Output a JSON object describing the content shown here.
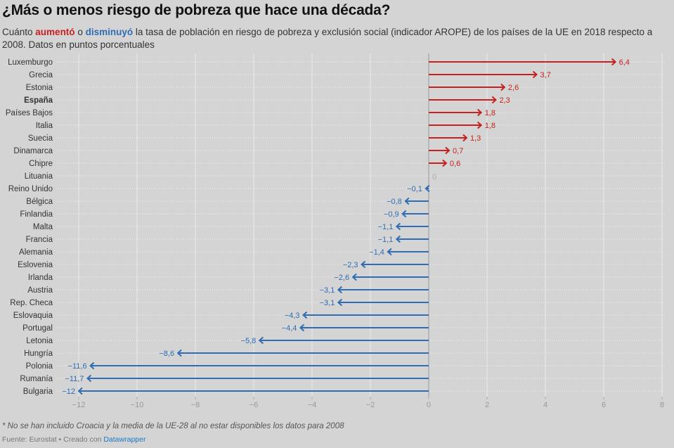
{
  "header": {
    "title": "¿Más o menos riesgo de pobreza que hace una década?",
    "subtitle_pre": "Cuánto ",
    "subtitle_up": "aumentó",
    "subtitle_mid": " o ",
    "subtitle_down": "disminuyó",
    "subtitle_post": " la tasa de población en riesgo de pobreza y exclusión social (indicador AROPE) de los países de la UE en 2018 respecto a 2008. Datos en puntos porcentuales"
  },
  "footer": {
    "note": "* No se han incluido Croacia y la media de la UE-28 al no estar disponibles los datos para 2008",
    "source_prefix": "Fuente: Eurostat • Creado con ",
    "source_link": "Datawrapper"
  },
  "colors": {
    "increase": "#c8201e",
    "decrease": "#2f6cb3",
    "zero": "#aaaaaa",
    "background": "#d4d4d4"
  },
  "chart_data": {
    "type": "bar",
    "orientation": "horizontal",
    "style": "arrow",
    "title": "¿Más o menos riesgo de pobreza que hace una década?",
    "xlabel": "",
    "ylabel": "",
    "xlim": [
      -12,
      8
    ],
    "xticks": [
      -12,
      -10,
      -8,
      -6,
      -4,
      -2,
      0,
      2,
      4,
      6,
      8
    ],
    "xtick_labels": [
      "−12",
      "−10",
      "−8",
      "−6",
      "−4",
      "−2",
      "0",
      "2",
      "4",
      "6",
      "8"
    ],
    "grid": true,
    "highlight": "España",
    "categories": [
      "Luxemburgo",
      "Grecia",
      "Estonia",
      "España",
      "Países Bajos",
      "Italia",
      "Suecia",
      "Dinamarca",
      "Chipre",
      "Lituania",
      "Reino Unido",
      "Bélgica",
      "Finlandia",
      "Malta",
      "Francia",
      "Alemania",
      "Eslovenia",
      "Irlanda",
      "Austria",
      "Rep. Checa",
      "Eslovaquia",
      "Portugal",
      "Letonia",
      "Hungría",
      "Polonia",
      "Rumanía",
      "Bulgaria"
    ],
    "values": [
      6.4,
      3.7,
      2.6,
      2.3,
      1.8,
      1.8,
      1.3,
      0.7,
      0.6,
      0,
      -0.1,
      -0.8,
      -0.9,
      -1.1,
      -1.1,
      -1.4,
      -2.3,
      -2.6,
      -3.1,
      -3.1,
      -4.3,
      -4.4,
      -5.8,
      -8.6,
      -11.6,
      -11.7,
      -12
    ],
    "value_labels": [
      "6,4",
      "3,7",
      "2,6",
      "2,3",
      "1,8",
      "1,8",
      "1,3",
      "0,7",
      "0,6",
      "0",
      "−0,1",
      "−0,8",
      "−0,9",
      "−1,1",
      "−1,1",
      "−1,4",
      "−2,3",
      "−2,6",
      "−3,1",
      "−3,1",
      "−4,3",
      "−4,4",
      "−5,8",
      "−8,6",
      "−11,6",
      "−11,7",
      "−12"
    ]
  }
}
